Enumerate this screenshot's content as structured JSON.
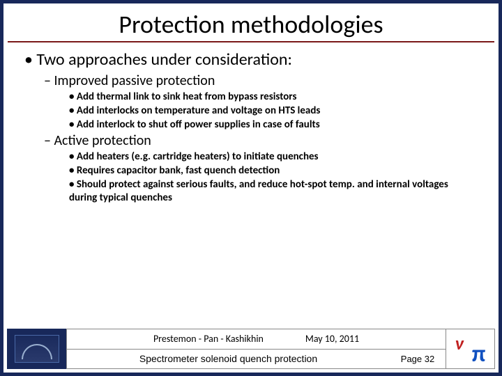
{
  "title": "Protection methodologies",
  "colors": {
    "border": "#18285a",
    "underline": "#7a1818",
    "text": "#000000",
    "background": "#ffffff"
  },
  "bullets": {
    "l1_1": "Two approaches under consideration:",
    "l2_1": "Improved passive protection",
    "l3_1": "Add thermal link to sink heat from bypass resistors",
    "l3_2": "Add interlocks on temperature and voltage on HTS leads",
    "l3_3": "Add interlock to shut off power supplies in case of faults",
    "l2_2": "Active protection",
    "l3_4": "Add heaters (e.g. cartridge heaters) to initiate quenches",
    "l3_5": "Requires capacitor bank, fast quench detection",
    "l3_6": "Should protect against serious faults, and reduce hot-spot temp. and internal voltages during typical quenches"
  },
  "footer": {
    "authors": "Prestemon - Pan - Kashikhin",
    "date": "May 10, 2011",
    "subtitle": "Spectrometer solenoid quench protection",
    "page": "Page 32"
  }
}
